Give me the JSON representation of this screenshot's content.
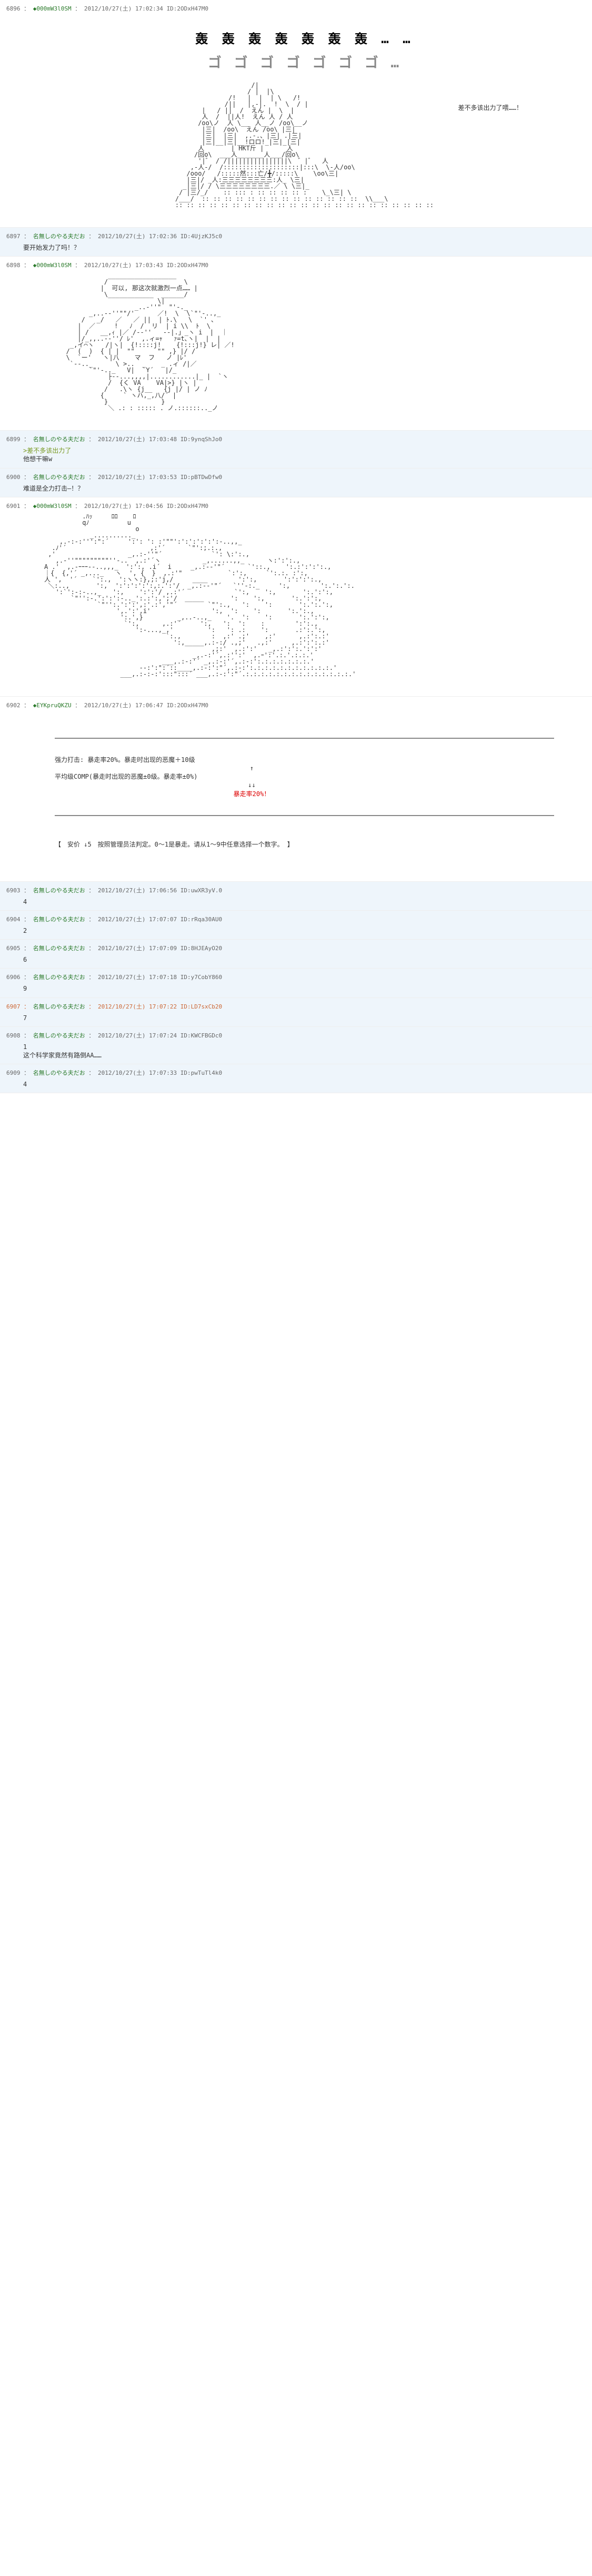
{
  "posts": [
    {
      "no": "6896",
      "name": "◆000mW3l0SM",
      "date": "2012/10/27(土) 17:02:34",
      "id": "ID:2ODxH47M0",
      "bg": "",
      "content": {
        "big1": "轰 轰 轰 轰 轰 轰 轰 … …",
        "big2": "ゴ ゴ ゴ ゴ ゴ ゴ ゴ …",
        "side": "差不多该出力了喂……！",
        "aa": "                    /|\n                   / |  |\\\n              /!   |  |  | \\   /!\n             /||   |,-|.  !  \\  / |\n       |   / ||  /  えん |  \\  |\n       人  /  ||人!  えん 人 / 人\n      /oo\\ノ  人 \\__　人__ノ /oo\\__ノ\n       |三|  /oo\\  えん /oo\\ |三|\n       |三|  |三|  ,.-.、|三| .|三|\n       |三|__|三|__!ロロ!_|三|_|三|\n      人       | HKT斤 |      人\n     /回o\\  ___人_______人___/回o\\\n      '|゛ / /||||||||||||||||\\　゛|゛  人\n    ,-人-/  /::::::::::::::::::::|:::\\  \\-人/oo\\\n   /ooo/   /:::::然:::亡/╋/:::::\\    \\oo\\三|\n   |三|/ _人:三三三三三三三三:人_ \\三|\n  _|三|/ / \\三三三三三三三三.／ \\ \\三|_\n / |三/_/    :: ::: : :: :: :: :: :    \\_\\三| \\\n/___/  :: :: :: :: :: :: :: :: :: :: :: :: :: ::  \\\\___\\\n:: :: :: :: :: :: :: :: :: :: :: :: :: :: :: :: :: :: :: :: :: :: ::"
      }
    },
    {
      "no": "6897",
      "name": "名無しのやる夫だお",
      "date": "2012/10/27(土) 17:02:36",
      "id": "ID:4UjzKJ5c0",
      "bg": "blue",
      "content": {
        "text": "要开始发力了吗！？"
      }
    },
    {
      "no": "6898",
      "name": "◆000mW3l0SM",
      "date": "2012/10/27(土) 17:03:43",
      "id": "ID:2ODxH47M0",
      "bg": "",
      "content": {
        "bubble": "可以, 那这次就激烈一点……",
        "aa": "              __________________\n             /                    \\\n            |  可以, 那这次就激烈一点…… |\n             \\____________  ______/\n                           \\|\n                     _..-''\"  \"'‐._\n         _,..-‐''\"\"/'      ／!  \\  \\`\"'‐..,_\n       /   _/   ／   ／ ||  | ﾄ.\\   \\  `' ､\n      |  ／     !   ﾉ  /  リ  | i \\\\  ﾄ  \\\n      | /   __,ｨ |／ /-‐''   ‐-|.」_ヽ i  |  ｜\n      |/_,,..-‐''/ ﾚ'  ,.ィ=ｬ   ｧ=t､ヽ|  |  |\n    _,イ⌒ヽ   /|ヽ|  {!::::j!    {!:::j!} レ| ／!\n   /  (  )  { | |  \"\"      \"\" ,} |/ /\n   \\  `ー'   ヽ|八    マ  フ   ノ |ﾚ'\n    `‐-.._      \\ >..  _    _ .ィ /|／\n         `\"'-.._   V|  `Y´   |/_\n              ├‐-...,,,,|............|_ |  `ヽ\n              /  {く VA    VA|>} |ヽ |\n             /   .\\ヽ {j__   {j |/ | ノ ﾉ\n            {     ` ヽハ,_,八/´ |\n             }              }\n              ＼ .: : ::::: . ノ.::::::.._ノ"
      }
    },
    {
      "no": "6899",
      "name": "名無しのやる夫だお",
      "date": "2012/10/27(土) 17:03:48",
      "id": "ID:9ynqShJo0",
      "bg": "blue",
      "content": {
        "quote": ">差不多该出力了",
        "text": "他想干嘛w"
      }
    },
    {
      "no": "6900",
      "name": "名無しのやる夫だお",
      "date": "2012/10/27(土) 17:03:53",
      "id": "ID:pBTDwDfw0",
      "bg": "blue",
      "content": {
        "text": "难道是全力打击―！？"
      }
    },
    {
      "no": "6901",
      "name": "◆000mW3l0SM",
      "date": "2012/10/27(土) 17:04:56",
      "id": "ID:2ODxH47M0",
      "bg": "",
      "content": {
        "aa": "          .ﾊｯ     ﾛﾛ    ﾛ\n          qﾉ          u\n                        o\n            _.........._\n    ,.-:‐:''':\":´     ':': ': :'\"\"':':':':':':-..,,_\n  .ﾉ'´                      ,:'´      `\"':;.:.,\n ,'                   _,.:-''\"´             `': \\:':.,\n   ,.-''\"\"\"\"\"\"\"\"\"''-..  ,.:'´ヽ           _,......,,_      ヽ:':':.,\nA .'  ,.-ｰｰｰ--..,,,_  ':':, .i´  i     _,.:-‐'\"´      `'::.,    ':.:':':':.,\n｜{  {,'´ _,..._   ヽ  ', {  }  ,.:'\"            `:':,     `':.:. :':,\n人 ',  '´    `':.,  ':ヽヽ:},;:'j,/     ____        ':':,       ':':':':.,\n ＼:..,       ':,  ':':':':':,:.':'/  _,.:-‐'\"´   `''-:._     ':,        ':.':.':.\n   ':`':‐:-..,_   ':,    ':':'/ ,.:'´             `':,    ':,       ':.':':,\n       `\"'':-.':':':-.._':.:':,';'/  _____       ':    ':,       ':.':':,\n              `\"'':.':':',:'.:','\"´        `\"':.,   ':    ':       ':.':.':,\n                   ',.':',i'                ':,  ':    ':       ':.':.,\n                    ':.',}         _,..-..,_    '.  ':    ':       ':.':':,\n                     `':,      ,.:'´     ':,   ':  ':    :        ':':.,\n                        ':-...,_,'         ':   ': .:    ':       .:':.':,\n                                `:.,        :  ,:' .;'    ,:'      ,.:':.:'\n                                  ':,_____,.:-:/ .,;'   .,:'     ,.:':':.:'\n                                            ,;:'  ,.:':'   _,.:':':.':':'\n                                       _,.-:'´,.:'':'  ,.ｰ':'.:.'.:.:.'\n                               ___,.:-:'´ _,.:-:'´,.:-:':.:.:.:.:.:.:.'\n                         -‐:':\":´::____,.:-:':\"´,.:-:':.:.:.:.:.:.:.:.:.:.:.'\n                    ___,.:-:‐:':::\":::´ ___,.:-:':\"´.:.:.:.:.:.:.:.:.:.:.:.:.:.:.'"
      }
    },
    {
      "no": "6902",
      "name": "◆EYKpruQKZU",
      "date": "2012/10/27(土) 17:06:47",
      "id": "ID:2ODxH47M0",
      "bg": "",
      "content": {
        "section": {
          "line1": "强力打击: 暴走率20%。暴走时出现的恶魔＋10级",
          "arrow1": "↑",
          "line2": "平均级COMP(暴走时出现的恶魔±0级。暴走率±0%)",
          "arrow2": "↓↓",
          "line3": "暴走率20%！",
          "bottom": "【　安价 ↓5　按照管理员法判定。0～1是暴走。请从1～9中任意选择一个数字。 】"
        }
      }
    },
    {
      "no": "6903",
      "name": "名無しのやる夫だお",
      "date": "2012/10/27(土) 17:06:56",
      "id": "ID:uwXR3yV.0",
      "bg": "blue",
      "content": {
        "text": "4"
      }
    },
    {
      "no": "6904",
      "name": "名無しのやる夫だお",
      "date": "2012/10/27(土) 17:07:07",
      "id": "ID:rRqa30AU0",
      "bg": "blue",
      "content": {
        "text": "2"
      }
    },
    {
      "no": "6905",
      "name": "名無しのやる夫だお",
      "date": "2012/10/27(土) 17:07:09",
      "id": "ID:8HJEAyO20",
      "bg": "blue",
      "content": {
        "text": "6"
      }
    },
    {
      "no": "6906",
      "name": "名無しのやる夫だお",
      "date": "2012/10/27(土) 17:07:18",
      "id": "ID:y7CobY860",
      "bg": "blue",
      "content": {
        "text": "9"
      }
    },
    {
      "no": "6907",
      "name": "名無しのやる夫だお",
      "date": "2012/10/27(土) 17:07:22",
      "id": "ID:LD7sxCb20",
      "bg": "blue",
      "highlight": true,
      "content": {
        "text": "7"
      }
    },
    {
      "no": "6908",
      "name": "名無しのやる夫だお",
      "date": "2012/10/27(土) 17:07:24",
      "id": "ID:KWCFBGDc0",
      "bg": "blue",
      "content": {
        "text": "1\n这个科学家竟然有路倒AA……"
      }
    },
    {
      "no": "6909",
      "name": "名無しのやる夫だお",
      "date": "2012/10/27(土) 17:07:33",
      "id": "ID:pwTuTl4k0",
      "bg": "blue",
      "content": {
        "text": "4"
      }
    }
  ]
}
